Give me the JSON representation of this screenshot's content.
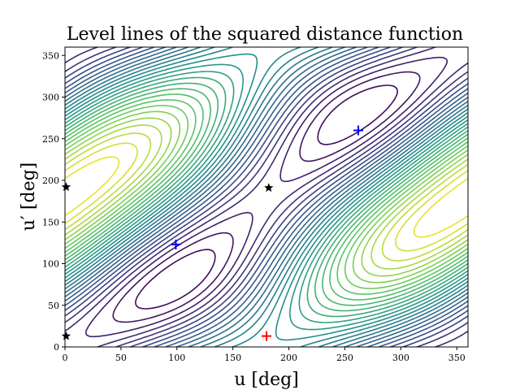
{
  "chart_data": {
    "type": "contour",
    "title": "Level lines of the squared distance function",
    "xlabel": "u [deg]",
    "ylabel": "u′ [deg]",
    "xlim": [
      0,
      360
    ],
    "ylim": [
      0,
      360
    ],
    "xticks": [
      0,
      50,
      100,
      150,
      200,
      250,
      300,
      350
    ],
    "yticks": [
      0,
      50,
      100,
      150,
      200,
      250,
      300,
      350
    ],
    "colormap": [
      "#440154",
      "#3b528b",
      "#21918c",
      "#5ec962",
      "#fde725"
    ],
    "markers": [
      {
        "label": "black-star",
        "symbol": "star",
        "color": "#000000",
        "x": 1,
        "y": 192
      },
      {
        "label": "black-star",
        "symbol": "star",
        "color": "#000000",
        "x": 1,
        "y": 13
      },
      {
        "label": "black-star",
        "symbol": "star",
        "color": "#000000",
        "x": 182,
        "y": 191
      },
      {
        "label": "blue-plus",
        "symbol": "plus",
        "color": "#0000ff",
        "x": 99,
        "y": 123
      },
      {
        "label": "blue-plus",
        "symbol": "plus",
        "color": "#0000ff",
        "x": 262,
        "y": 260
      },
      {
        "label": "red-plus",
        "symbol": "plus",
        "color": "#ff0000",
        "x": 180,
        "y": 13
      }
    ]
  }
}
